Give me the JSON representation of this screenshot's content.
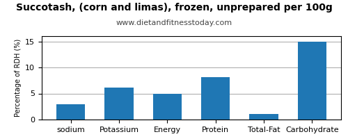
{
  "chart_data": {
    "type": "bar",
    "title": "Succotash, (corn and limas), frozen, unprepared per 100g",
    "subtitle": "www.dietandfitnesstoday.com",
    "ylabel": "Percentage of RDH (%)",
    "categories": [
      "sodium",
      "Potassium",
      "Energy",
      "Protein",
      "Total-Fat",
      "Carbohydrate"
    ],
    "values": [
      3.0,
      6.2,
      5.0,
      8.1,
      1.1,
      15.0
    ],
    "ylim": [
      0,
      16
    ],
    "yticks": [
      0,
      5,
      10,
      15
    ],
    "grid": true
  }
}
